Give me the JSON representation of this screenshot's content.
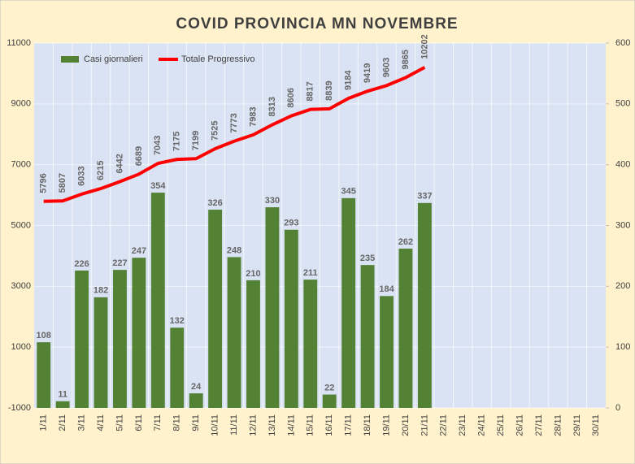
{
  "chart_data": {
    "type": "bar-line",
    "title": "COVID  PROVINCIA MN  NOVEMBRE",
    "categories": [
      "1/11",
      "2/11",
      "3/11",
      "4/11",
      "5/11",
      "6/11",
      "7/11",
      "8/11",
      "9/11",
      "10/11",
      "11/11",
      "12/11",
      "13/11",
      "14/11",
      "15/11",
      "16/11",
      "17/11",
      "18/11",
      "19/11",
      "20/11",
      "21/11",
      "22/11",
      "23/11",
      "24/11",
      "25/11",
      "26/11",
      "27/11",
      "28/11",
      "29/11",
      "30/11"
    ],
    "series": [
      {
        "name": "Casi giornalieri",
        "type": "bar",
        "axis": "y2",
        "color": "#548235",
        "values": [
          108,
          11,
          226,
          182,
          227,
          247,
          354,
          132,
          24,
          326,
          248,
          210,
          330,
          293,
          211,
          22,
          345,
          235,
          184,
          262,
          337,
          null,
          null,
          null,
          null,
          null,
          null,
          null,
          null,
          null
        ]
      },
      {
        "name": "Totale Progressivo",
        "type": "line",
        "axis": "y",
        "color": "#ff0000",
        "values": [
          5796,
          5807,
          6033,
          6215,
          6442,
          6689,
          7043,
          7175,
          7199,
          7525,
          7773,
          7983,
          8313,
          8606,
          8817,
          8839,
          9184,
          9419,
          9603,
          9865,
          10202,
          null,
          null,
          null,
          null,
          null,
          null,
          null,
          null,
          null
        ]
      }
    ],
    "ylim": [
      -1000,
      11000
    ],
    "yticks": [
      -1000,
      1000,
      3000,
      5000,
      7000,
      9000,
      11000
    ],
    "y2lim": [
      0,
      600
    ],
    "y2ticks": [
      0,
      100,
      200,
      300,
      400,
      500,
      600
    ],
    "legend": "top-left",
    "grid": true
  }
}
